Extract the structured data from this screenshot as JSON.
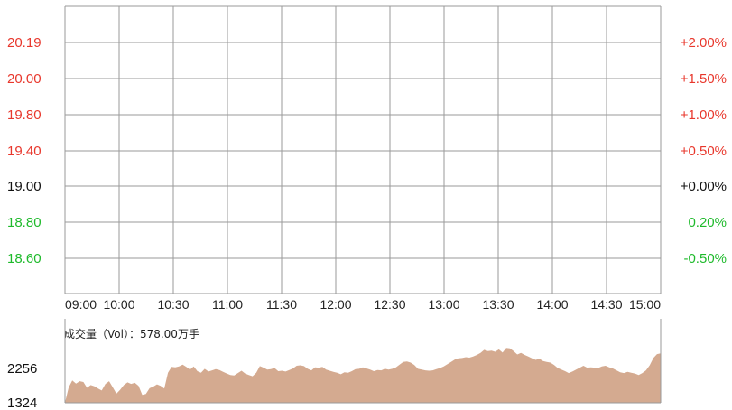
{
  "colors": {
    "up": "#e8372c",
    "down": "#1fba2c",
    "neutral": "#111111",
    "grid": "#9a9a9a",
    "volume_fill": "#d4aa90"
  },
  "chart_data": {
    "type": "area",
    "price_axis": {
      "ticks": [
        {
          "label": "20.19",
          "pct": "+2.00%",
          "state": "up"
        },
        {
          "label": "20.00",
          "pct": "+1.50%",
          "state": "up"
        },
        {
          "label": "19.80",
          "pct": "+1.00%",
          "state": "up"
        },
        {
          "label": "19.40",
          "pct": "+0.50%",
          "state": "up"
        },
        {
          "label": "19.00",
          "pct": "+0.00%",
          "state": "neutral"
        },
        {
          "label": "18.80",
          "pct": "0.20%",
          "state": "down"
        },
        {
          "label": "18.60",
          "pct": "-0.50%",
          "state": "down"
        }
      ]
    },
    "time_labels": [
      "09:00",
      "10:00",
      "10:30",
      "11:00",
      "11:30",
      "12:00",
      "12:30",
      "13:00",
      "13:30",
      "14:00",
      "14:30",
      "15:00"
    ],
    "volume_title": "成交量（Vol）：578.00万手",
    "volume_axis": {
      "ticks": [
        "2256",
        "1324"
      ],
      "ylim": [
        1324,
        2256
      ]
    },
    "volume_values": [
      1330,
      1720,
      1900,
      1820,
      1880,
      1860,
      1710,
      1780,
      1750,
      1690,
      1640,
      1810,
      1880,
      1720,
      1560,
      1660,
      1780,
      1850,
      1810,
      1840,
      1760,
      1530,
      1550,
      1700,
      1740,
      1800,
      1760,
      1690,
      2100,
      2250,
      2240,
      2260,
      2310,
      2250,
      2180,
      2260,
      2140,
      2100,
      2200,
      2130,
      2160,
      2190,
      2170,
      2120,
      2080,
      2040,
      2030,
      2090,
      2150,
      2080,
      2040,
      2010,
      2100,
      2270,
      2230,
      2180,
      2190,
      2220,
      2140,
      2150,
      2130,
      2170,
      2210,
      2280,
      2290,
      2270,
      2200,
      2160,
      2240,
      2230,
      2250,
      2180,
      2150,
      2120,
      2100,
      2060,
      2110,
      2100,
      2140,
      2190,
      2200,
      2240,
      2210,
      2180,
      2140,
      2170,
      2160,
      2200,
      2180,
      2200,
      2240,
      2310,
      2380,
      2390,
      2360,
      2300,
      2200,
      2180,
      2160,
      2150,
      2160,
      2190,
      2220,
      2260,
      2320,
      2380,
      2440,
      2470,
      2480,
      2500,
      2490,
      2520,
      2560,
      2610,
      2690,
      2660,
      2670,
      2640,
      2700,
      2620,
      2740,
      2730,
      2660,
      2570,
      2610,
      2560,
      2520,
      2470,
      2430,
      2460,
      2400,
      2380,
      2360,
      2300,
      2220,
      2180,
      2140,
      2090,
      2130,
      2180,
      2230,
      2280,
      2230,
      2240,
      2230,
      2220,
      2260,
      2280,
      2240,
      2210,
      2160,
      2110,
      2090,
      2120,
      2100,
      2080,
      2040,
      2090,
      2160,
      2290,
      2480,
      2580,
      2600
    ]
  }
}
